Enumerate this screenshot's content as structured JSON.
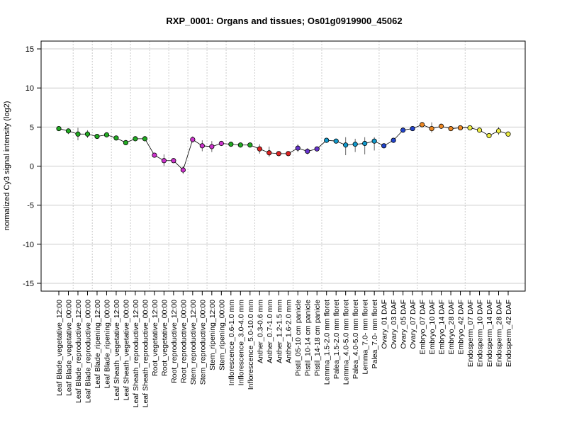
{
  "chart_data": {
    "type": "line",
    "title": "RXP_0001: Organs and tissues; Os01g0919900_45062",
    "xlabel": "",
    "ylabel": "normalized Cy3 signal intensity (log2)",
    "ylim": [
      -16,
      16
    ],
    "yticks": [
      -15,
      -10,
      -5,
      0,
      5,
      10,
      15
    ],
    "grid": "horizontal lines at y ticks; dotted vertical separators between sample groups",
    "categories": [
      "Leaf Blade_vegetative_12:00",
      "Leaf Blade_vegetative_00:00",
      "Leaf Blade_reproductive_12:00",
      "Leaf Blade_reproductive_00:00",
      "Leaf Blade_ripening_12:00",
      "Leaf Blade_ripening_00:00",
      "Leaf Sheath_vegetative_12:00",
      "Leaf Sheath_vegetative_00:00",
      "Leaf Sheath_reproductive_12:00",
      "Leaf Sheath_reproductive_00:00",
      "Root_vegetative_12:00",
      "Root_vegetative_00:00",
      "Root_reproductive_12:00",
      "Root_reproductive_00:00",
      "Stem_reproductive_12:00",
      "Stem_reproductive_00:00",
      "Stem_ripening_12:00",
      "Stem_ripening_00:00",
      "Inflorescence_0.6-1.0 mm",
      "Inflorescence_3.0-4.0 mm",
      "Inflorescence_5.0-10.0 mm",
      "Anther_0.3-0.6 mm",
      "Anther_0.7-1.0 mm",
      "Anther_1.2-1.5 mm",
      "Anther_1.6-2.0 mm",
      "Pistil_05-10 cm panicle",
      "Pistil_10-14 cm panicle",
      "Pistil_14-18 cm panicle",
      "Lemma_1.5-2.0 mm floret",
      "Palea_1.5-2.0 mm floret",
      "Lemma_4.0-5.0 mm floret",
      "Palea_4.0-5.0 mm floret",
      "Lemma_7.0- mm floret",
      "Palea_7.0- mm floret",
      "Ovary_01 DAF",
      "Ovary_03 DAF",
      "Ovary_05 DAF",
      "Ovary_07 DAF",
      "Embryo_07 DAF",
      "Embryo_10 DAF",
      "Embryo_14 DAF",
      "Embryo_28 DAF",
      "Embryo_42 DAF",
      "Endosperm_07 DAF",
      "Endosperm_10 DAF",
      "Endosperm_14 DAF",
      "Endosperm_28 DAF",
      "Endosperm_42 DAF"
    ],
    "values": [
      4.8,
      4.5,
      4.1,
      4.1,
      3.8,
      4.0,
      3.6,
      3.0,
      3.5,
      3.5,
      1.4,
      0.7,
      0.7,
      -0.5,
      3.4,
      2.6,
      2.5,
      2.9,
      2.8,
      2.7,
      2.7,
      2.2,
      1.7,
      1.6,
      1.6,
      2.3,
      1.9,
      2.2,
      3.3,
      3.2,
      2.7,
      2.8,
      2.9,
      3.2,
      2.6,
      3.3,
      4.6,
      4.8,
      5.3,
      4.8,
      5.1,
      4.8,
      4.9,
      4.9,
      4.6,
      3.9,
      4.5,
      4.1
    ],
    "err_low": [
      4.7,
      4.1,
      3.3,
      3.6,
      3.6,
      3.7,
      3.3,
      2.8,
      3.3,
      3.2,
      1.2,
      0.0,
      0.5,
      -1.0,
      3.0,
      1.9,
      1.8,
      2.7,
      2.6,
      2.5,
      2.6,
      1.6,
      1.2,
      1.4,
      1.4,
      1.8,
      1.5,
      2.0,
      3.1,
      3.0,
      1.4,
      1.8,
      1.5,
      2.0,
      2.4,
      3.0,
      4.4,
      4.6,
      5.1,
      4.3,
      4.9,
      4.6,
      4.7,
      4.7,
      4.4,
      3.7,
      4.0,
      3.9
    ],
    "err_high": [
      5.0,
      4.8,
      4.9,
      4.6,
      4.1,
      4.3,
      3.9,
      3.3,
      3.8,
      3.8,
      1.6,
      1.5,
      1.0,
      0.0,
      3.8,
      3.3,
      3.2,
      3.2,
      3.1,
      3.0,
      2.9,
      2.8,
      2.5,
      1.9,
      1.9,
      2.8,
      2.3,
      2.4,
      3.5,
      3.5,
      3.7,
      3.5,
      3.7,
      3.7,
      2.8,
      3.6,
      4.8,
      5.0,
      5.5,
      5.6,
      5.3,
      5.0,
      5.1,
      5.1,
      4.8,
      4.1,
      5.0,
      4.3
    ],
    "point_colors": [
      "#22AA22",
      "#22AA22",
      "#22AA22",
      "#22AA22",
      "#22AA22",
      "#22AA22",
      "#22AA22",
      "#22AA22",
      "#22AA22",
      "#22AA22",
      "#CC33CC",
      "#CC33CC",
      "#CC33CC",
      "#CC33CC",
      "#CC33CC",
      "#CC33CC",
      "#CC33CC",
      "#CC33CC",
      "#22AA22",
      "#22AA22",
      "#22AA22",
      "#DD2222",
      "#DD2222",
      "#DD2222",
      "#DD2222",
      "#6633CC",
      "#6633CC",
      "#6633CC",
      "#1199CC",
      "#1199CC",
      "#1199CC",
      "#1199CC",
      "#1199CC",
      "#1199CC",
      "#2244CC",
      "#2244CC",
      "#2244CC",
      "#2244CC",
      "#EE8822",
      "#EE8822",
      "#EE8822",
      "#EE8822",
      "#EE8822",
      "#EEEE44",
      "#EEEE44",
      "#EEEE44",
      "#EEEE44",
      "#EEEE44"
    ],
    "group_separators_after": [
      1,
      3,
      5,
      7,
      9,
      11,
      13,
      15,
      17,
      20,
      24,
      27,
      33,
      37,
      42
    ],
    "line_color": "#000000",
    "grid_color": "#cccccc"
  }
}
